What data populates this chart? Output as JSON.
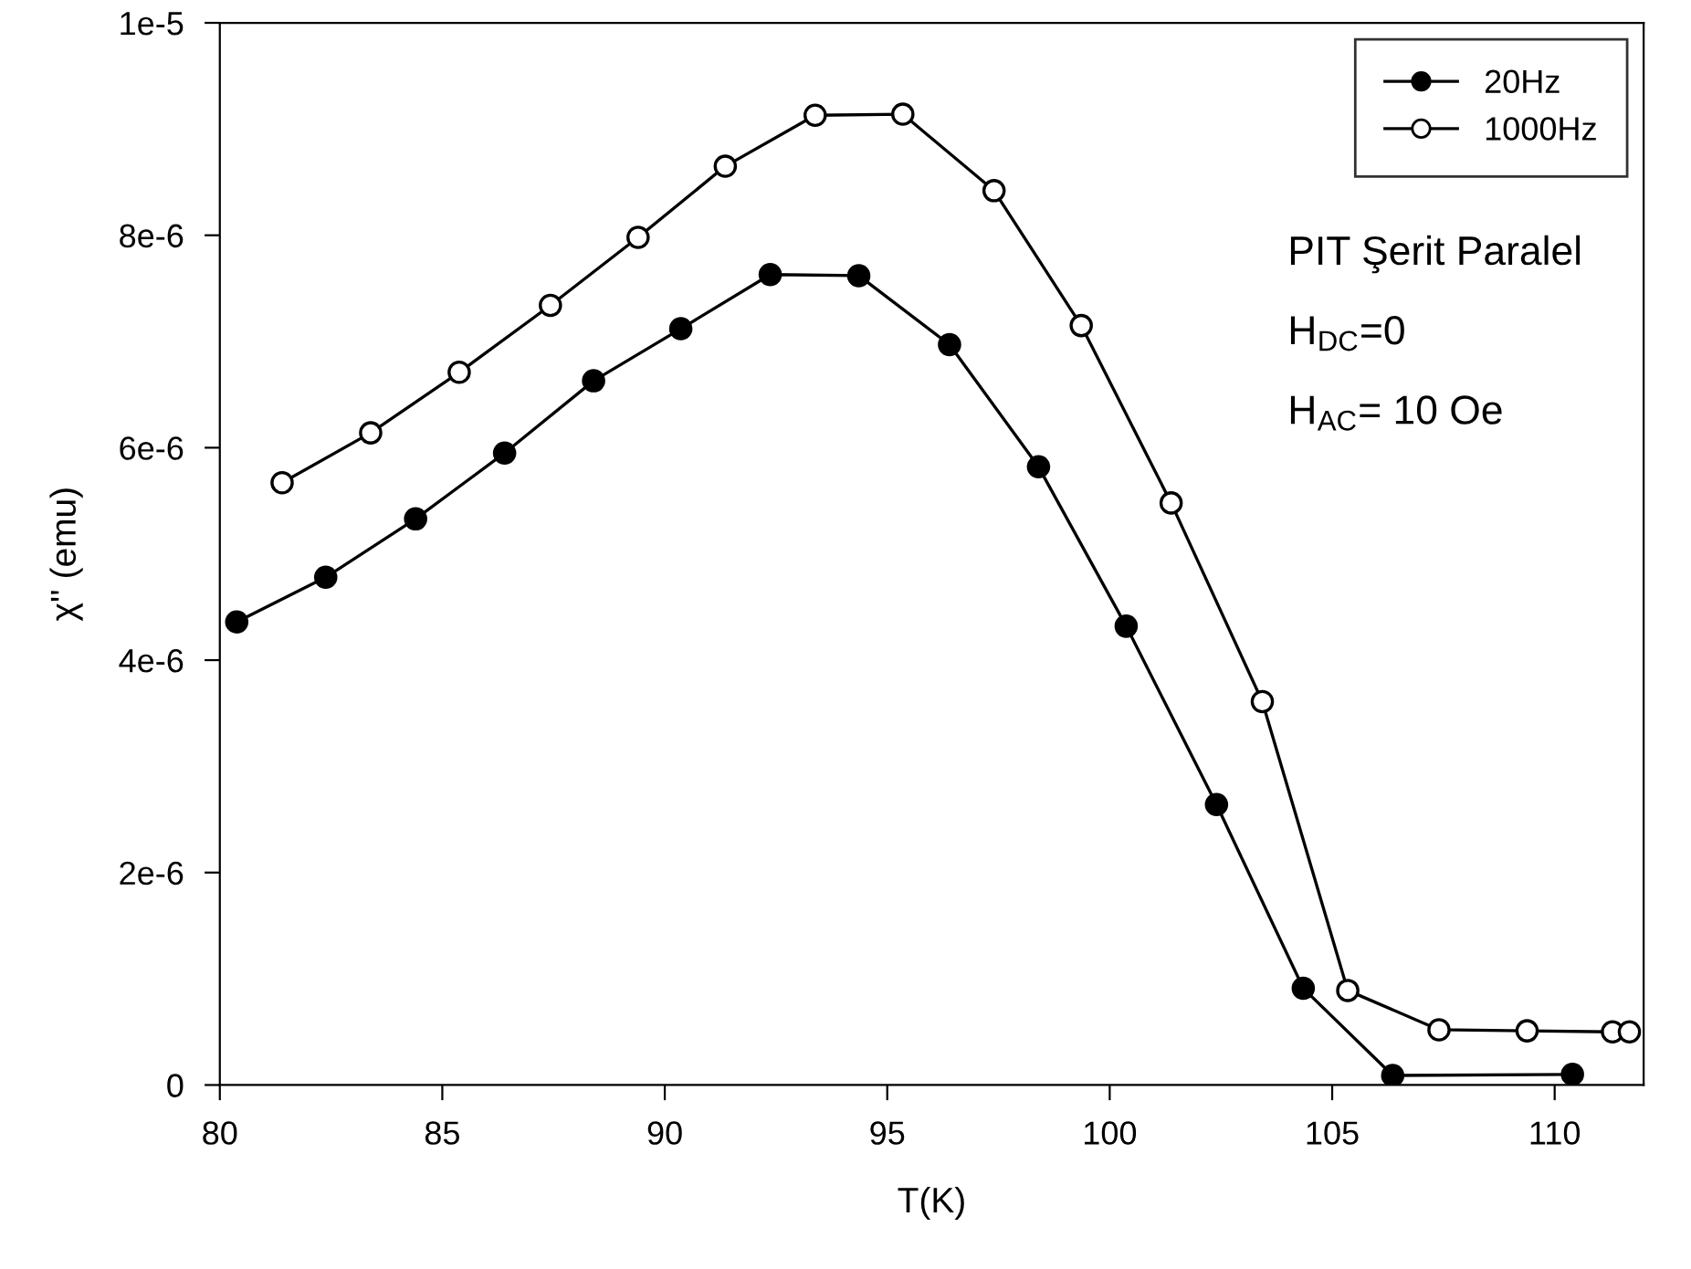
{
  "chart_data": {
    "type": "line",
    "xlabel": "T(K)",
    "ylabel": "χ'' (emu)",
    "xlim": [
      80,
      112
    ],
    "xticks": [
      80,
      85,
      90,
      95,
      100,
      105,
      110
    ],
    "ylim": [
      0,
      1e-05
    ],
    "yticks": [
      0,
      {
        "value": 2e-06,
        "label": "2e-6"
      },
      {
        "value": 4e-06,
        "label": "4e-6"
      },
      {
        "value": 6e-06,
        "label": "6e-6"
      },
      {
        "value": 8e-06,
        "label": "8e-6"
      },
      {
        "value": 1e-05,
        "label": "1e-5"
      }
    ],
    "marker": "circle",
    "legend": "top right",
    "grid": false,
    "series": [
      {
        "name": "20Hz",
        "color": "#000000",
        "x": [
          80.38,
          82.38,
          84.4,
          86.4,
          88.4,
          90.36,
          92.37,
          94.36,
          96.4,
          98.4,
          100.37,
          102.4,
          104.35,
          106.36,
          110.4
        ],
        "values": [
          4.36e-06,
          4.78e-06,
          5.33e-06,
          5.95e-06,
          6.63e-06,
          7.12e-06,
          7.63e-06,
          7.62e-06,
          6.97e-06,
          5.82e-06,
          4.32e-06,
          2.64e-06,
          9.1e-07,
          9e-08,
          1e-07
        ]
      },
      {
        "name": "1000Hz",
        "color": "#ffffff",
        "x": [
          81.4,
          83.39,
          85.38,
          87.43,
          89.4,
          91.36,
          93.38,
          95.35,
          97.4,
          99.36,
          101.38,
          103.43,
          105.35,
          107.4,
          109.38,
          111.3,
          111.68
        ],
        "values": [
          5.67e-06,
          6.14e-06,
          6.71e-06,
          7.34e-06,
          7.98e-06,
          8.65e-06,
          9.13e-06,
          9.14e-06,
          8.42e-06,
          7.15e-06,
          5.48e-06,
          3.61e-06,
          8.9e-07,
          5.2e-07,
          5.1e-07,
          5e-07,
          5e-07
        ]
      }
    ],
    "annotations": [
      "PIT Şerit Paralel",
      "H$_{DC}$=0",
      "H$_{AC}$= 10 Oe"
    ]
  }
}
